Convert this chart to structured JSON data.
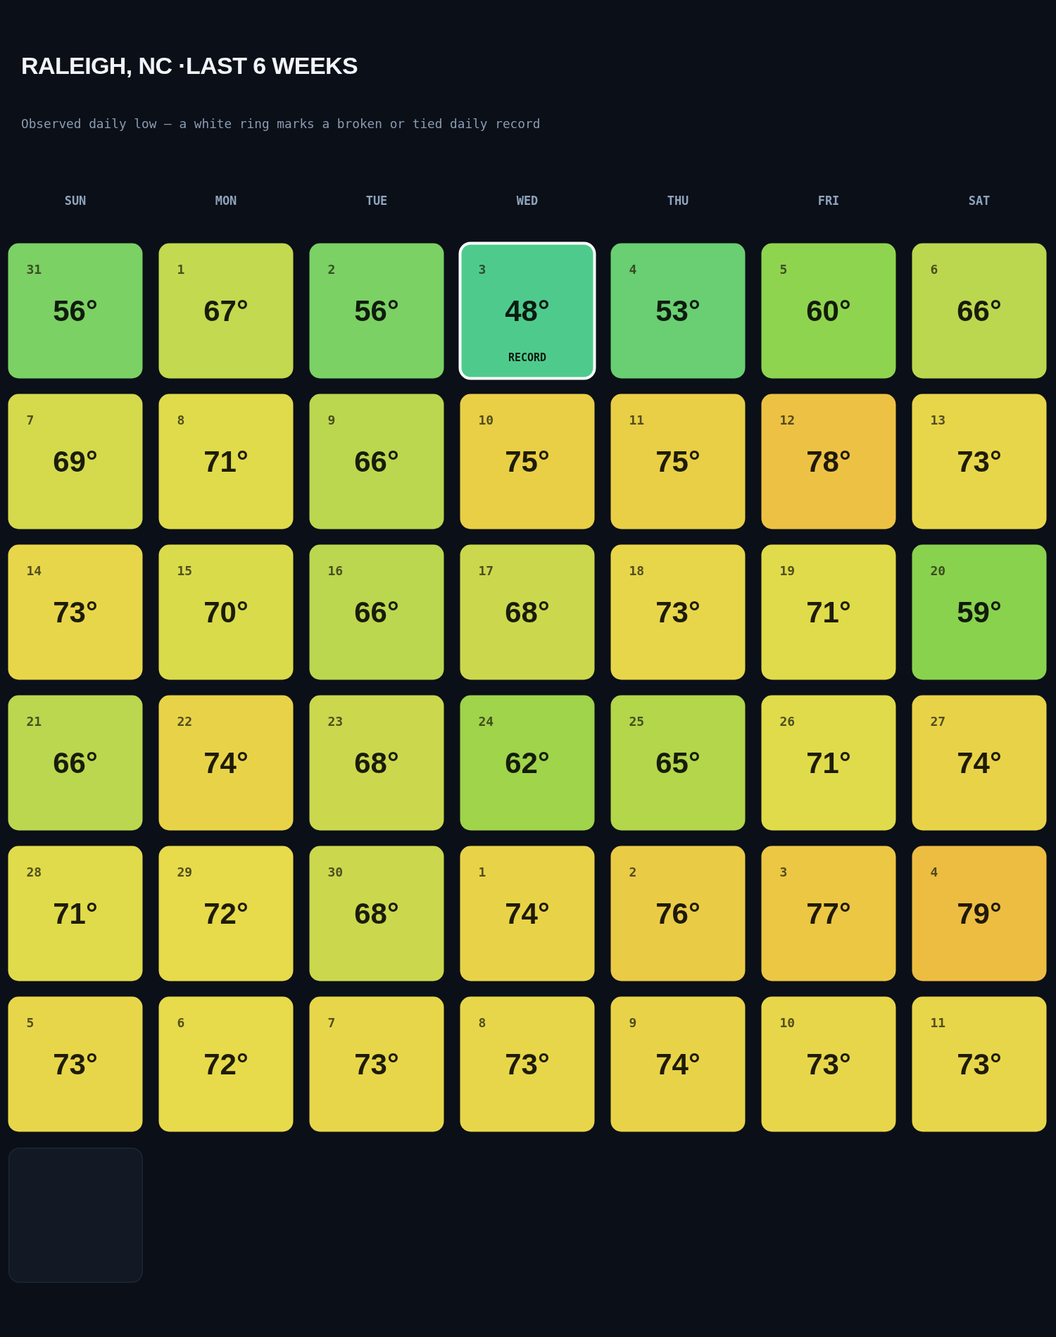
{
  "chart_data": {
    "type": "heatmap",
    "title": "RALEIGH, NC ·LAST 6 WEEKS",
    "subtitle": "Observed daily low — a white ring marks a broken or tied daily record",
    "categories": [
      "SUN",
      "MON",
      "TUE",
      "WED",
      "THU",
      "FRI",
      "SAT"
    ],
    "y_categories": [
      null,
      null,
      null,
      null,
      null,
      null
    ],
    "cells": [
      [
        56,
        67,
        56,
        48,
        53,
        60,
        66
      ],
      [
        69,
        71,
        66,
        75,
        75,
        78,
        73
      ],
      [
        73,
        70,
        66,
        68,
        73,
        71,
        59
      ],
      [
        66,
        74,
        68,
        62,
        65,
        71,
        74
      ],
      [
        71,
        72,
        68,
        74,
        76,
        77,
        79
      ],
      [
        73,
        72,
        73,
        73,
        74,
        73,
        73
      ]
    ],
    "cell_labels": [
      [
        "56°",
        "67°",
        "56°",
        "48°\nRECORD",
        "53°",
        "60°",
        "66°"
      ],
      [
        "69°",
        "71°",
        "66°",
        "75°",
        "75°",
        "78°",
        "73°"
      ],
      [
        "73°",
        "70°",
        "66°",
        "68°",
        "73°",
        "71°",
        "59°"
      ],
      [
        "66°",
        "74°",
        "68°",
        "62°",
        "65°",
        "71°",
        "74°"
      ],
      [
        "71°",
        "72°",
        "68°",
        "74°",
        "76°",
        "77°",
        "79°"
      ],
      [
        "73°",
        "72°",
        "73°",
        "73°",
        "74°",
        "73°",
        "73°"
      ]
    ],
    "colors": [
      [
        "#7bd164",
        "#c3d94f",
        "#7bd164",
        "#4ecb8c",
        "#69cf72",
        "#8fd44f",
        "#bbd74f"
      ],
      [
        "#d4da4c",
        "#e0db4a",
        "#bbd74f",
        "#e9cf46",
        "#e9cf46",
        "#edc244",
        "#e8d64a"
      ],
      [
        "#e8d64a",
        "#d9db4b",
        "#bbd74f",
        "#cbd84e",
        "#e8d64a",
        "#e0db4a",
        "#89d24e"
      ],
      [
        "#bbd74f",
        "#e8d348",
        "#cbd84e",
        "#9fd44b",
        "#b3d64b",
        "#e0db4a",
        "#e8d348"
      ],
      [
        "#e0db4a",
        "#e7da4b",
        "#cbd84e",
        "#e8d348",
        "#eacb46",
        "#ecc744",
        "#edbd42"
      ],
      [
        "#e8d64a",
        "#e7da4b",
        "#e8d64a",
        "#e8d64a",
        "#e8d348",
        "#e8d64a",
        "#e8d64a"
      ]
    ],
    "annotations": [
      "31",
      "1",
      "2",
      "3",
      "4",
      "5",
      "6",
      "7",
      "8",
      "9",
      "10",
      "11",
      "12",
      "13",
      "14",
      "15",
      "16",
      "17",
      "18",
      "19",
      "20",
      "21",
      "22",
      "23",
      "24",
      "25",
      "26",
      "27",
      "28",
      "29",
      "30",
      "1",
      "2",
      "3",
      "4",
      "5",
      "6",
      "7",
      "8",
      "9",
      "10",
      "11"
    ],
    "tick_labels": "x"
  }
}
